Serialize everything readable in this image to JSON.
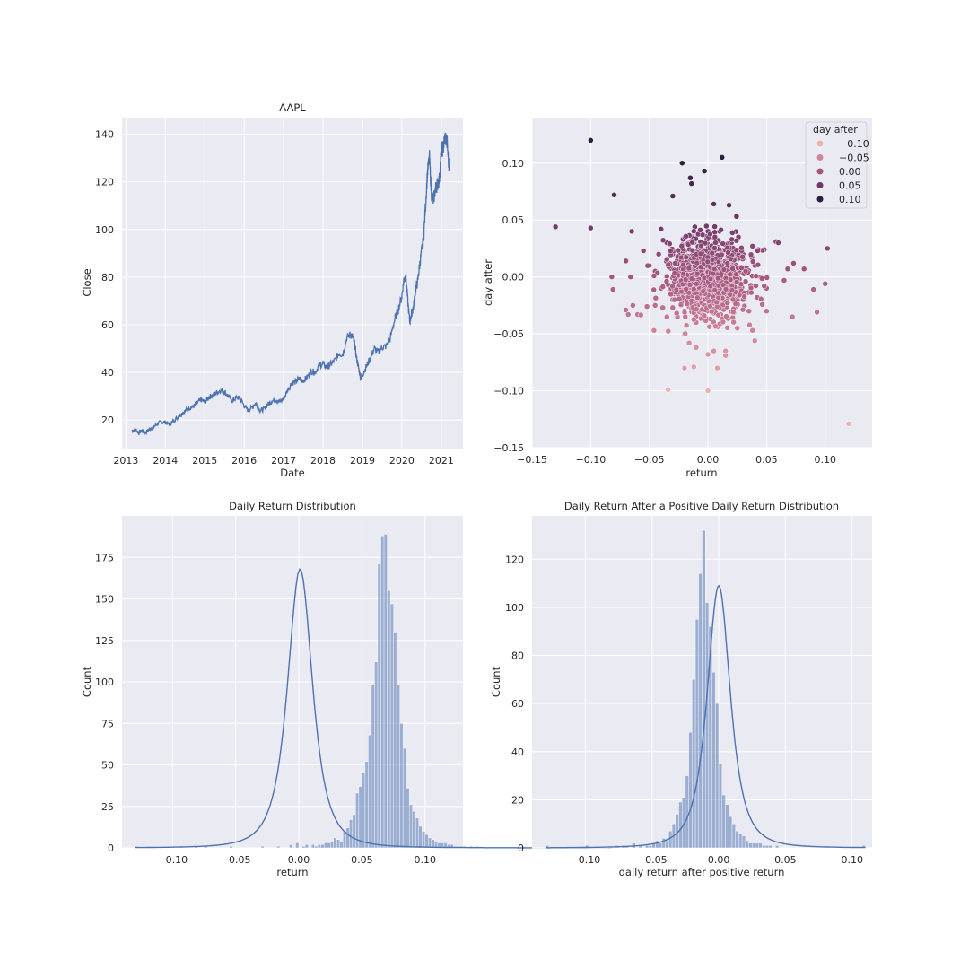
{
  "figure": {
    "background": "#ffffff",
    "plot_background": "#eaeaf2",
    "accent": "#4c72b0"
  },
  "chart_data": [
    {
      "id": "price",
      "type": "line",
      "title": "AAPL",
      "xlabel": "Date",
      "ylabel": "Close",
      "xlim": [
        2012.9,
        2021.55
      ],
      "ylim": [
        8,
        147
      ],
      "xticks": [
        2013,
        2014,
        2015,
        2016,
        2017,
        2018,
        2019,
        2020,
        2021
      ],
      "xtick_labels": [
        "2013",
        "2014",
        "2015",
        "2016",
        "2017",
        "2018",
        "2019",
        "2020",
        "2021"
      ],
      "yticks": [
        20,
        40,
        60,
        80,
        100,
        120,
        140
      ],
      "ytick_labels": [
        "20",
        "40",
        "60",
        "80",
        "100",
        "120",
        "140"
      ],
      "grid": true,
      "color": "#4c72b0",
      "series": [
        {
          "x": [
            2013.15,
            2013.25,
            2013.32,
            2013.4,
            2013.5,
            2013.6,
            2013.7,
            2013.8,
            2013.9,
            2014.0,
            2014.1,
            2014.2,
            2014.3,
            2014.4,
            2014.5,
            2014.6,
            2014.7,
            2014.8,
            2014.9,
            2015.0,
            2015.1,
            2015.2,
            2015.3,
            2015.4,
            2015.5,
            2015.6,
            2015.7,
            2015.8,
            2015.9,
            2016.0,
            2016.1,
            2016.2,
            2016.3,
            2016.4,
            2016.5,
            2016.6,
            2016.7,
            2016.8,
            2016.9,
            2017.0,
            2017.1,
            2017.2,
            2017.3,
            2017.4,
            2017.5,
            2017.6,
            2017.7,
            2017.8,
            2017.9,
            2018.0,
            2018.1,
            2018.2,
            2018.3,
            2018.4,
            2018.5,
            2018.6,
            2018.7,
            2018.75,
            2018.8,
            2018.85,
            2018.9,
            2018.95,
            2019.0,
            2019.1,
            2019.2,
            2019.3,
            2019.4,
            2019.5,
            2019.6,
            2019.7,
            2019.8,
            2019.9,
            2020.0,
            2020.05,
            2020.1,
            2020.15,
            2020.2,
            2020.25,
            2020.3,
            2020.35,
            2020.4,
            2020.45,
            2020.5,
            2020.55,
            2020.6,
            2020.65,
            2020.7,
            2020.75,
            2020.8,
            2020.85,
            2020.9,
            2020.95,
            2021.0,
            2021.05,
            2021.1,
            2021.15,
            2021.2
          ],
          "y": [
            15.5,
            16.0,
            14.5,
            15.5,
            14.8,
            16.2,
            17.0,
            18.5,
            19.2,
            19.0,
            18.2,
            19.5,
            21.0,
            22.5,
            23.8,
            25.0,
            25.5,
            27.0,
            28.5,
            27.5,
            29.5,
            30.5,
            31.5,
            32.5,
            31.8,
            30.0,
            28.0,
            29.5,
            29.0,
            26.0,
            24.0,
            25.5,
            27.0,
            24.0,
            24.5,
            26.5,
            28.0,
            28.5,
            27.5,
            29.0,
            32.5,
            35.5,
            36.0,
            37.5,
            36.5,
            38.0,
            40.5,
            40.0,
            43.0,
            43.5,
            42.0,
            43.5,
            45.0,
            48.0,
            47.5,
            54.5,
            56.0,
            55.0,
            52.0,
            46.0,
            42.0,
            38.0,
            39.0,
            42.5,
            46.0,
            50.0,
            48.5,
            50.5,
            51.0,
            54.0,
            61.0,
            66.0,
            72.0,
            79.0,
            80.5,
            70.0,
            61.0,
            65.0,
            68.0,
            75.0,
            78.0,
            85.0,
            91.0,
            96.0,
            110.0,
            124.0,
            130.0,
            115.0,
            112.0,
            117.0,
            119.0,
            121.0,
            133.0,
            134.5,
            139.0,
            136.0,
            125.0
          ]
        }
      ]
    },
    {
      "id": "scatter",
      "type": "scatter",
      "title": "",
      "xlabel": "return",
      "ylabel": "day after",
      "xlim": [
        -0.15,
        0.14
      ],
      "ylim": [
        -0.15,
        0.14
      ],
      "xticks": [
        -0.15,
        -0.1,
        -0.05,
        0.0,
        0.05,
        0.1
      ],
      "xtick_labels": [
        "−0.15",
        "−0.10",
        "−0.05",
        "0.00",
        "0.05",
        "0.10"
      ],
      "yticks": [
        -0.15,
        -0.1,
        -0.05,
        0.0,
        0.05,
        0.1
      ],
      "ytick_labels": [
        "−0.15",
        "−0.10",
        "−0.05",
        "0.00",
        "0.05",
        "0.10"
      ],
      "grid": true,
      "hue": "day after",
      "legend": {
        "title": "day after",
        "placement": "top-right",
        "entries": [
          {
            "label": "−0.10",
            "value": -0.1,
            "color": "#eab3b0"
          },
          {
            "label": "−0.05",
            "value": -0.05,
            "color": "#cf8599"
          },
          {
            "label": "0.00",
            "value": 0.0,
            "color": "#a6577f"
          },
          {
            "label": "0.05",
            "value": 0.05,
            "color": "#6e3769"
          },
          {
            "label": "0.10",
            "value": 0.1,
            "color": "#2d1e3e"
          }
        ]
      },
      "points": [
        [
          -0.1,
          0.12
        ],
        [
          -0.13,
          0.044
        ],
        [
          -0.1,
          0.043
        ],
        [
          -0.08,
          0.072
        ],
        [
          -0.022,
          0.1
        ],
        [
          -0.015,
          0.087
        ],
        [
          -0.014,
          0.082
        ],
        [
          0.012,
          0.105
        ],
        [
          -0.003,
          0.093
        ],
        [
          -0.03,
          0.071
        ],
        [
          0.005,
          0.064
        ],
        [
          0.018,
          0.063
        ],
        [
          -0.065,
          0.04
        ],
        [
          -0.04,
          0.042
        ],
        [
          0.058,
          0.031
        ],
        [
          0.06,
          0.03
        ],
        [
          0.102,
          0.025
        ],
        [
          -0.055,
          0.023
        ],
        [
          0.048,
          0.024
        ],
        [
          -0.07,
          0.014
        ],
        [
          0.073,
          0.012
        ],
        [
          0.068,
          0.007
        ],
        [
          0.082,
          0.007
        ],
        [
          -0.082,
          0.0
        ],
        [
          -0.066,
          0.0
        ],
        [
          0.065,
          -0.003
        ],
        [
          0.1,
          -0.006
        ],
        [
          0.09,
          -0.011
        ],
        [
          -0.081,
          -0.011
        ],
        [
          0.05,
          -0.01
        ],
        [
          -0.07,
          -0.029
        ],
        [
          -0.064,
          -0.025
        ],
        [
          -0.052,
          -0.026
        ],
        [
          -0.068,
          -0.033
        ],
        [
          -0.06,
          -0.033
        ],
        [
          0.093,
          -0.031
        ],
        [
          0.072,
          -0.035
        ],
        [
          0.05,
          -0.03
        ],
        [
          -0.045,
          -0.025
        ],
        [
          -0.046,
          -0.047
        ],
        [
          -0.035,
          -0.035
        ],
        [
          0.038,
          -0.047
        ],
        [
          0.04,
          -0.056
        ],
        [
          0.025,
          -0.045
        ],
        [
          -0.02,
          -0.05
        ],
        [
          -0.016,
          -0.058
        ],
        [
          -0.01,
          -0.062
        ],
        [
          0.005,
          -0.065
        ],
        [
          -0.02,
          -0.08
        ],
        [
          -0.012,
          -0.079
        ],
        [
          0.0,
          -0.068
        ],
        [
          0.008,
          -0.08
        ],
        [
          0.015,
          -0.065
        ],
        [
          0.015,
          -0.069
        ],
        [
          -0.034,
          -0.099
        ],
        [
          0.0,
          -0.1
        ],
        [
          0.12,
          -0.129
        ],
        [
          0.0,
          0.0
        ],
        [
          0.01,
          0.005
        ],
        [
          -0.01,
          -0.005
        ],
        [
          0.02,
          0.01
        ],
        [
          -0.02,
          -0.01
        ],
        [
          0.005,
          0.02
        ],
        [
          -0.005,
          -0.02
        ],
        [
          0.015,
          -0.015
        ],
        [
          -0.015,
          0.015
        ],
        [
          0.025,
          0.0
        ],
        [
          -0.025,
          0.0
        ],
        [
          0.0,
          0.025
        ],
        [
          0.0,
          -0.025
        ],
        [
          0.03,
          0.02
        ],
        [
          -0.03,
          -0.02
        ],
        [
          0.03,
          -0.02
        ],
        [
          -0.03,
          0.02
        ],
        [
          0.04,
          0.01
        ],
        [
          -0.04,
          -0.01
        ],
        [
          0.01,
          0.04
        ],
        [
          -0.01,
          -0.04
        ],
        [
          0.035,
          -0.03
        ],
        [
          -0.035,
          0.03
        ],
        [
          0.02,
          0.03
        ],
        [
          -0.02,
          -0.03
        ],
        [
          0.045,
          0.0
        ],
        [
          -0.045,
          0.005
        ],
        [
          0.0,
          0.04
        ],
        [
          0.005,
          -0.04
        ],
        [
          0.012,
          0.013
        ],
        [
          -0.012,
          -0.013
        ],
        [
          0.007,
          -0.008
        ],
        [
          -0.007,
          0.008
        ],
        [
          0.018,
          0.022
        ],
        [
          -0.018,
          -0.022
        ],
        [
          0.028,
          -0.01
        ],
        [
          -0.028,
          0.012
        ],
        [
          0.022,
          -0.028
        ],
        [
          -0.022,
          0.028
        ],
        [
          0.038,
          0.027
        ],
        [
          -0.038,
          -0.027
        ],
        [
          0.002,
          0.012
        ],
        [
          0.002,
          -0.012
        ],
        [
          -0.042,
          0.02
        ],
        [
          0.042,
          -0.018
        ],
        [
          0.009,
          0.032
        ],
        [
          -0.009,
          -0.032
        ],
        [
          0.016,
          0.0
        ],
        [
          -0.016,
          0.0
        ],
        [
          0.0,
          0.016
        ],
        [
          0.0,
          -0.016
        ],
        [
          0.033,
          0.008
        ],
        [
          -0.033,
          -0.008
        ],
        [
          0.026,
          0.035
        ],
        [
          -0.026,
          -0.035
        ],
        [
          0.013,
          -0.035
        ],
        [
          -0.013,
          0.035
        ],
        [
          0.048,
          -0.008
        ],
        [
          -0.05,
          0.01
        ],
        [
          0.004,
          0.005
        ],
        [
          -0.004,
          -0.005
        ]
      ]
    },
    {
      "id": "hist_return",
      "type": "bar",
      "title": "Daily Return Distribution",
      "xlabel": "return",
      "ylabel": "Count",
      "xlim": [
        -0.14,
        0.13
      ],
      "ylim": [
        0,
        200
      ],
      "xticks": [
        -0.1,
        -0.05,
        0.0,
        0.05,
        0.1
      ],
      "xtick_labels": [
        "−0.10",
        "−0.05",
        "0.00",
        "0.05",
        "0.10"
      ],
      "yticks": [
        0,
        25,
        50,
        75,
        100,
        125,
        150,
        175
      ],
      "ytick_labels": [
        "0",
        "25",
        "50",
        "75",
        "100",
        "125",
        "150",
        "175"
      ],
      "grid": true,
      "bins": {
        "start": -0.13,
        "width": 0.0025
      },
      "values": [
        1,
        0,
        0,
        0,
        0,
        0,
        0,
        0,
        0,
        0,
        0,
        0,
        0,
        0,
        0,
        0,
        0,
        0,
        0,
        1,
        0,
        0,
        1,
        0,
        0,
        0,
        0,
        0,
        0,
        0,
        1,
        0,
        0,
        0,
        0,
        0,
        0,
        0,
        0,
        0,
        1,
        0,
        0,
        0,
        0,
        1,
        0,
        0,
        0,
        2,
        0,
        3,
        0,
        1,
        2,
        0,
        2,
        1,
        2,
        2,
        3,
        3,
        4,
        6,
        5,
        4,
        10,
        12,
        17,
        20,
        33,
        37,
        45,
        52,
        68,
        98,
        112,
        171,
        188,
        189,
        155,
        147,
        130,
        98,
        75,
        60,
        36,
        26,
        22,
        18,
        13,
        10,
        8,
        6,
        5,
        4,
        3,
        3,
        3,
        2,
        2,
        1,
        1,
        1,
        1,
        0,
        1,
        0,
        1,
        0,
        0,
        0,
        0,
        0,
        0,
        0,
        0,
        0,
        0,
        0,
        0,
        0,
        0,
        0,
        0,
        0,
        0,
        0,
        0,
        0,
        0,
        0,
        0,
        0,
        0,
        0,
        0,
        0,
        0,
        0,
        0,
        0,
        0,
        0,
        0,
        0,
        0,
        0,
        0,
        0,
        1
      ],
      "kde": {
        "center": 0.001,
        "scale": 0.0125,
        "peak": 168
      }
    },
    {
      "id": "hist_after",
      "type": "bar",
      "title": "Daily Return After a Positive Daily Return Distribution",
      "xlabel": "daily return after positive return",
      "ylabel": "Count",
      "xlim": [
        -0.14,
        0.115
      ],
      "ylim": [
        0,
        138
      ],
      "xticks": [
        -0.1,
        -0.05,
        0.0,
        0.05,
        0.1
      ],
      "xtick_labels": [
        "−0.10",
        "−0.05",
        "0.00",
        "0.05",
        "0.10"
      ],
      "yticks": [
        0,
        20,
        40,
        60,
        80,
        100,
        120
      ],
      "ytick_labels": [
        "0",
        "20",
        "40",
        "60",
        "80",
        "100",
        "120"
      ],
      "grid": true,
      "bins": {
        "start": -0.13,
        "width": 0.0025
      },
      "values": [
        1,
        0,
        0,
        0,
        0,
        0,
        0,
        0,
        0,
        0,
        0,
        0,
        1,
        0,
        0,
        0,
        0,
        0,
        0,
        0,
        0,
        1,
        0,
        1,
        1,
        0,
        2,
        0,
        1,
        0,
        1,
        1,
        2,
        3,
        2,
        4,
        3,
        7,
        10,
        14,
        19,
        21,
        30,
        48,
        70,
        95,
        114,
        132,
        102,
        92,
        73,
        60,
        35,
        22,
        18,
        13,
        10,
        7,
        6,
        5,
        3,
        2,
        2,
        2,
        2,
        1,
        1,
        1,
        0,
        1,
        0,
        0,
        0,
        0,
        0,
        0,
        0,
        0,
        0,
        0,
        0,
        0,
        0,
        0,
        0,
        0,
        0,
        0,
        0,
        0,
        0,
        0,
        0,
        0,
        0,
        1
      ],
      "kde": {
        "center": 0.0,
        "scale": 0.011,
        "peak": 109
      }
    }
  ]
}
